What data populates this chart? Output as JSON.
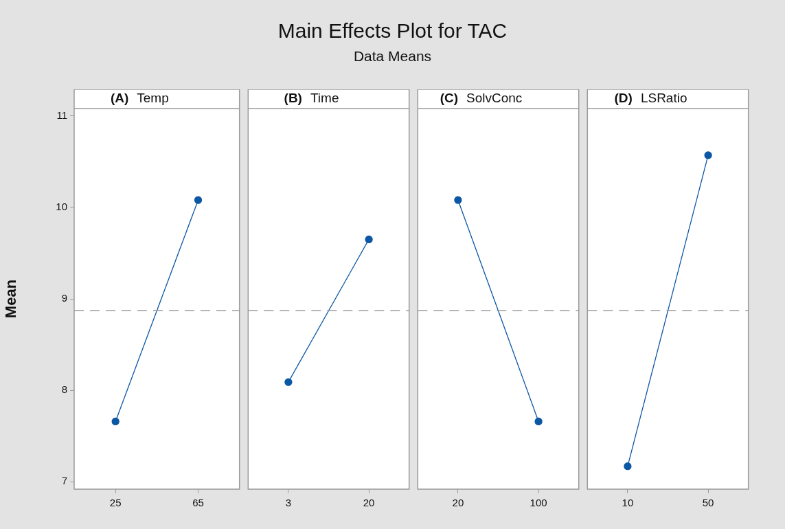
{
  "chart_data": [
    {
      "type": "other",
      "title": "Main Effects Plot for TAC",
      "subtitle": "Data Means"
    },
    {
      "type": "line",
      "ylabel": "Mean",
      "xlabel": "(A) Temp",
      "categories": [
        "25",
        "65"
      ],
      "series": [
        {
          "color": "#0b57a4",
          "values": [
            7.66,
            10.08
          ]
        }
      ],
      "ylim": [
        6.92,
        11.08
      ],
      "yticks": [
        7,
        8,
        9,
        10,
        11
      ],
      "marker": "circle",
      "ref_lines": [
        {
          "axis": "y",
          "value": 8.87,
          "color": "#9a9a9a",
          "line_style": "dashed"
        }
      ]
    },
    {
      "type": "line",
      "xlabel": "(B) Time",
      "categories": [
        "3",
        "20"
      ],
      "series": [
        {
          "color": "#0b57a4",
          "values": [
            8.09,
            9.65
          ]
        }
      ],
      "ylim": [
        6.92,
        11.08
      ],
      "yticks": [
        7,
        8,
        9,
        10,
        11
      ],
      "tick_labels": "x",
      "marker": "circle",
      "ref_lines": [
        {
          "axis": "y",
          "value": 8.87,
          "color": "#9a9a9a",
          "line_style": "dashed"
        }
      ]
    },
    {
      "type": "line",
      "xlabel": "(C) SolvConc",
      "categories": [
        "20",
        "100"
      ],
      "series": [
        {
          "color": "#0b57a4",
          "values": [
            10.08,
            7.66
          ]
        }
      ],
      "ylim": [
        6.92,
        11.08
      ],
      "yticks": [
        7,
        8,
        9,
        10,
        11
      ],
      "tick_labels": "x",
      "marker": "circle",
      "ref_lines": [
        {
          "axis": "y",
          "value": 8.87,
          "color": "#9a9a9a",
          "line_style": "dashed"
        }
      ]
    },
    {
      "type": "line",
      "xlabel": "(D) LSRatio",
      "categories": [
        "10",
        "50"
      ],
      "series": [
        {
          "color": "#0b57a4",
          "values": [
            7.17,
            10.57
          ]
        }
      ],
      "ylim": [
        6.92,
        11.08
      ],
      "yticks": [
        7,
        8,
        9,
        10,
        11
      ],
      "tick_labels": "x",
      "marker": "circle",
      "ref_lines": [
        {
          "axis": "y",
          "value": 8.87,
          "color": "#9a9a9a",
          "line_style": "dashed"
        }
      ]
    }
  ]
}
